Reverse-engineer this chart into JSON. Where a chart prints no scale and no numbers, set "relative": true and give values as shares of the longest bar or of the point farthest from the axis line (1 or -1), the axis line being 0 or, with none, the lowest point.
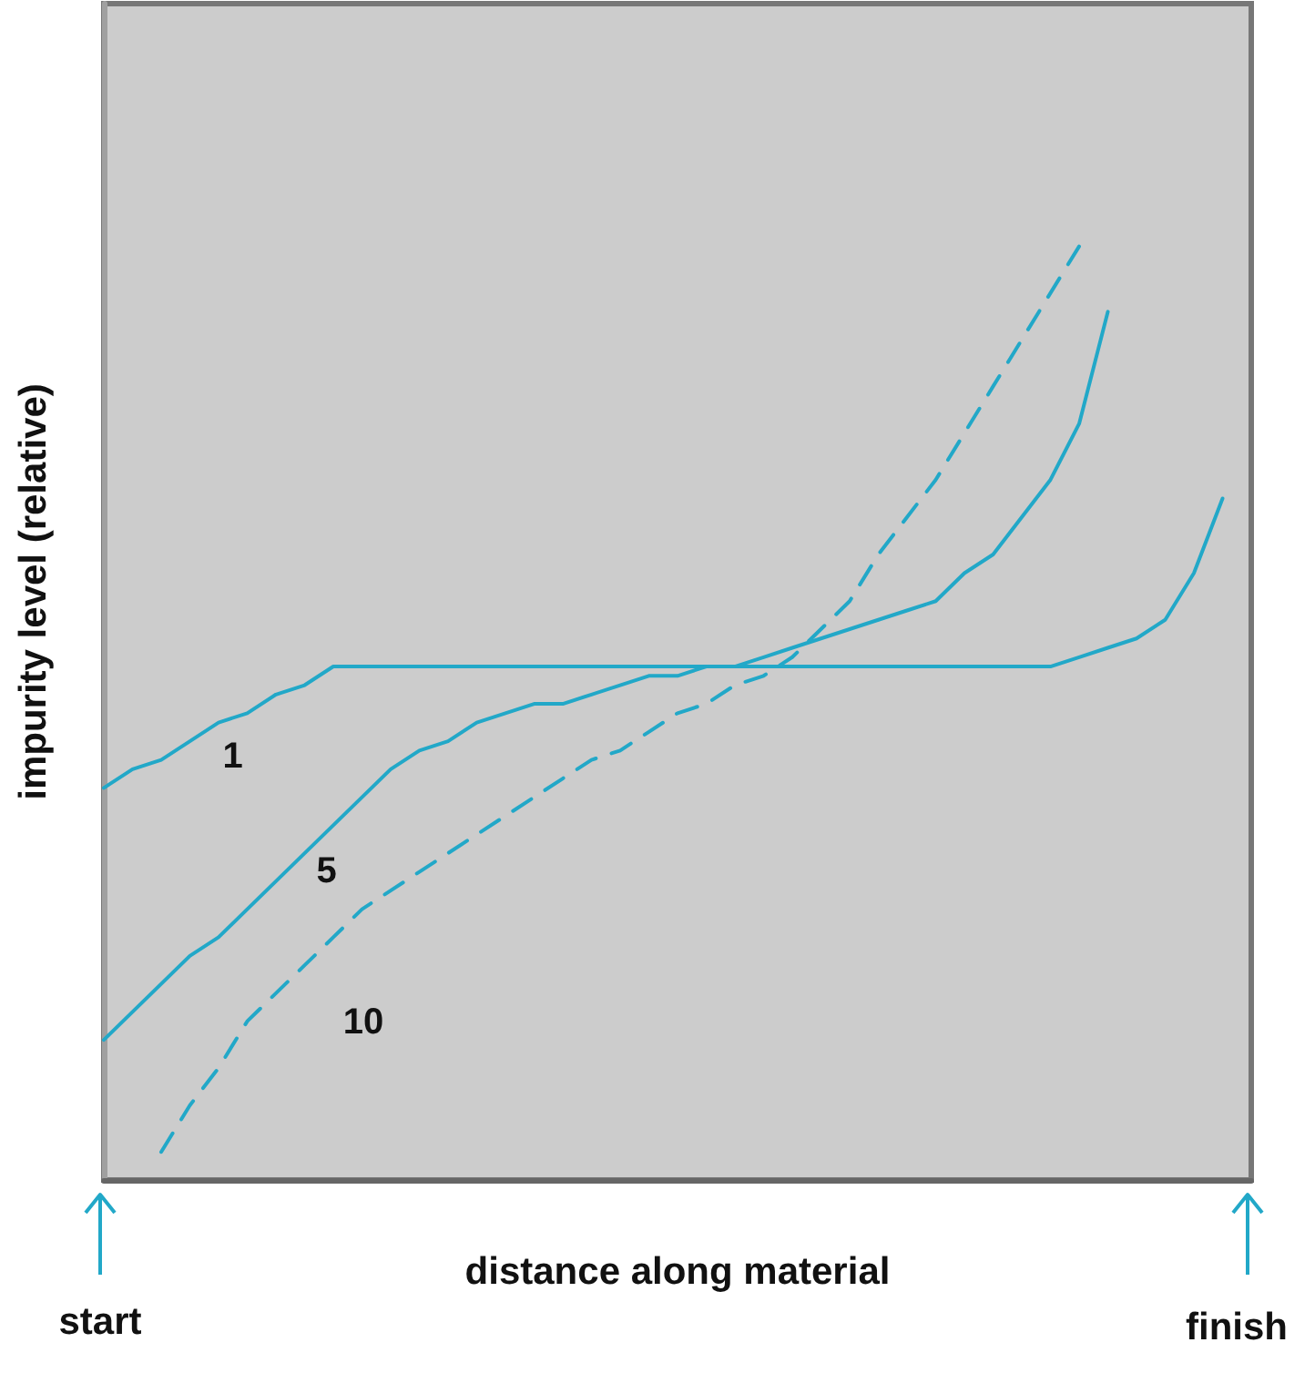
{
  "chart_data": {
    "type": "line",
    "relative": true,
    "xlabel": "distance along material",
    "ylabel": "impurity level (relative)",
    "marker": "none",
    "categories": [
      null,
      null,
      null,
      null,
      null,
      null,
      null,
      null,
      null,
      null,
      null,
      null,
      null,
      null,
      null,
      null,
      null,
      null,
      null,
      null,
      null,
      null,
      null,
      null,
      null,
      null,
      null,
      null,
      null,
      null,
      null,
      null,
      null,
      null,
      null,
      null,
      null,
      null,
      null,
      null,
      null
    ],
    "series": [
      {
        "name": "1",
        "color": "#22a8c8",
        "line_style": "solid",
        "values": [
          0.42,
          0.44,
          0.45,
          0.47,
          0.49,
          0.5,
          0.52,
          0.53,
          0.55,
          0.55,
          0.55,
          0.55,
          0.55,
          0.55,
          0.55,
          0.55,
          0.55,
          0.55,
          0.55,
          0.55,
          0.55,
          0.55,
          0.55,
          0.55,
          0.55,
          0.55,
          0.55,
          0.55,
          0.55,
          0.55,
          0.55,
          0.55,
          0.55,
          0.55,
          0.56,
          0.57,
          0.58,
          0.6,
          0.65,
          0.73,
          null
        ]
      },
      {
        "name": "5",
        "color": "#22a8c8",
        "line_style": "solid",
        "values": [
          0.15,
          0.18,
          0.21,
          0.24,
          0.26,
          0.29,
          0.32,
          0.35,
          0.38,
          0.41,
          0.44,
          0.46,
          0.47,
          0.49,
          0.5,
          0.51,
          0.51,
          0.52,
          0.53,
          0.54,
          0.54,
          0.55,
          0.55,
          0.56,
          0.57,
          0.58,
          0.59,
          0.6,
          0.61,
          0.62,
          0.65,
          0.67,
          0.71,
          0.75,
          0.81,
          0.93,
          null,
          null,
          null,
          null,
          null
        ]
      },
      {
        "name": "10",
        "color": "#22a8c8",
        "line_style": "dashed",
        "values": [
          null,
          null,
          0.03,
          0.08,
          0.12,
          0.17,
          0.2,
          0.23,
          0.26,
          0.29,
          0.31,
          0.33,
          0.35,
          0.37,
          0.39,
          0.41,
          0.43,
          0.45,
          0.46,
          0.48,
          0.5,
          0.51,
          0.53,
          0.54,
          0.56,
          0.59,
          0.62,
          0.67,
          0.71,
          0.75,
          0.8,
          0.85,
          0.9,
          0.95,
          1,
          null,
          null,
          null,
          null,
          null,
          null
        ]
      }
    ],
    "annotations": [
      "start",
      "finish"
    ]
  }
}
